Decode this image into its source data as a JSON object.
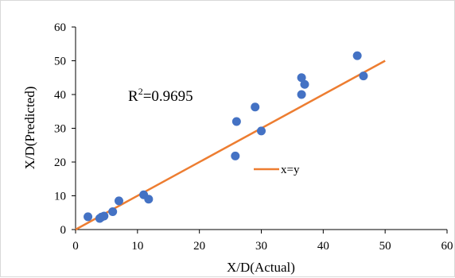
{
  "chart_data": {
    "type": "scatter",
    "title": "",
    "xlabel": "X/D(Actual)",
    "ylabel": "X/D(Predicted)",
    "xlim": [
      0,
      60
    ],
    "ylim": [
      0,
      60
    ],
    "xticks": [
      0,
      10,
      20,
      30,
      40,
      50,
      60
    ],
    "yticks": [
      0,
      10,
      20,
      30,
      40,
      50,
      60
    ],
    "grid": false,
    "annotation": {
      "r_label": "R",
      "r_exponent": "2",
      "r_value": "=0.9695"
    },
    "series": [
      {
        "type": "scatter",
        "color": "#4472c4",
        "points": [
          {
            "x": 2.0,
            "y": 3.8
          },
          {
            "x": 3.9,
            "y": 3.3
          },
          {
            "x": 4.2,
            "y": 3.7
          },
          {
            "x": 4.6,
            "y": 4.0
          },
          {
            "x": 6.0,
            "y": 5.3
          },
          {
            "x": 7.0,
            "y": 8.5
          },
          {
            "x": 11.0,
            "y": 10.3
          },
          {
            "x": 11.8,
            "y": 9.0
          },
          {
            "x": 25.8,
            "y": 21.8
          },
          {
            "x": 26.0,
            "y": 32.0
          },
          {
            "x": 29.0,
            "y": 36.3
          },
          {
            "x": 30.0,
            "y": 29.2
          },
          {
            "x": 36.5,
            "y": 40.0
          },
          {
            "x": 36.5,
            "y": 45.0
          },
          {
            "x": 37.0,
            "y": 43.0
          },
          {
            "x": 45.5,
            "y": 51.5
          },
          {
            "x": 46.5,
            "y": 45.5
          }
        ]
      },
      {
        "name": "x=y",
        "type": "line",
        "color": "#ed7d31",
        "points": [
          {
            "x": 0,
            "y": 0
          },
          {
            "x": 50,
            "y": 50
          }
        ]
      }
    ],
    "legend": {
      "placement": "center-right",
      "entries": [
        "x=y"
      ]
    }
  }
}
